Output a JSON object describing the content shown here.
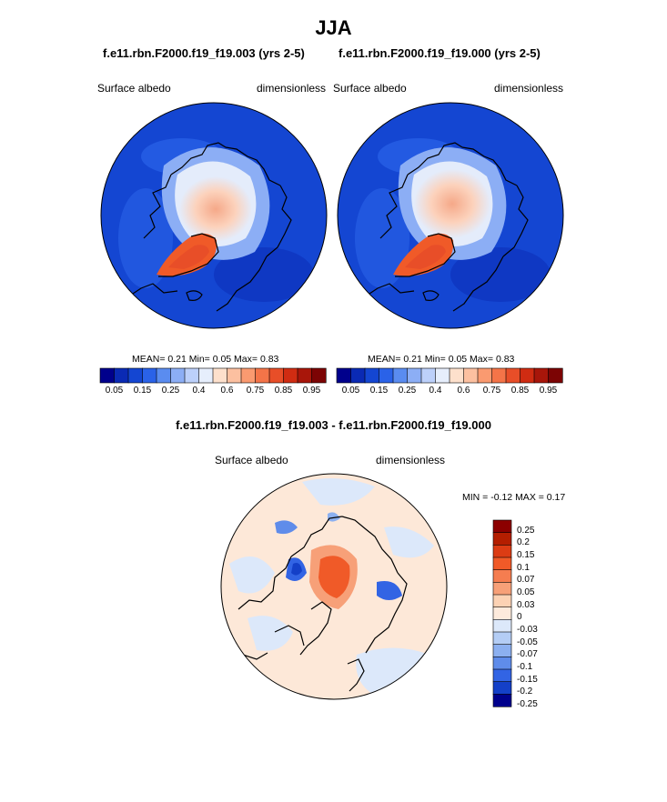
{
  "figure": {
    "title": "JJA",
    "left_panel": {
      "case_title": "f.e11.rbn.F2000.f19_f19.003 (yrs 2-5)",
      "variable": "Surface albedo",
      "units": "dimensionless",
      "stats": "MEAN=   0.21  Min=   0.05  Max=   0.83"
    },
    "right_panel": {
      "case_title": "f.e11.rbn.F2000.f19_f19.000 (yrs 2-5)",
      "variable": "Surface albedo",
      "units": "dimensionless",
      "stats": "MEAN=   0.21  Min=   0.05  Max=   0.83"
    },
    "diff_panel": {
      "title": "f.e11.rbn.F2000.f19_f19.003 - f.e11.rbn.F2000.f19_f19.000",
      "variable": "Surface albedo",
      "units": "dimensionless",
      "stats": "MIN =  -0.12 MAX =   0.17"
    }
  },
  "chart_data": [
    {
      "type": "heatmap",
      "title": "f.e11.rbn.F2000.f19_f19.003 (yrs 2-5)",
      "projection": "north polar stereographic",
      "variable": "Surface albedo",
      "units": "dimensionless",
      "mean": 0.21,
      "min": 0.05,
      "max": 0.83,
      "colorbar_levels": [
        0.05,
        0.1,
        0.15,
        0.2,
        0.25,
        0.3,
        0.4,
        0.5,
        0.6,
        0.7,
        0.75,
        0.8,
        0.85,
        0.9,
        0.95
      ],
      "colorbar_labels": [
        "0.05",
        "0.15",
        "0.25",
        "0.4",
        "0.6",
        "0.75",
        "0.85",
        "0.95"
      ]
    },
    {
      "type": "heatmap",
      "title": "f.e11.rbn.F2000.f19_f19.000 (yrs 2-5)",
      "projection": "north polar stereographic",
      "variable": "Surface albedo",
      "units": "dimensionless",
      "mean": 0.21,
      "min": 0.05,
      "max": 0.83,
      "colorbar_levels": [
        0.05,
        0.1,
        0.15,
        0.2,
        0.25,
        0.3,
        0.4,
        0.5,
        0.6,
        0.7,
        0.75,
        0.8,
        0.85,
        0.9,
        0.95
      ],
      "colorbar_labels": [
        "0.05",
        "0.15",
        "0.25",
        "0.4",
        "0.6",
        "0.75",
        "0.85",
        "0.95"
      ]
    },
    {
      "type": "heatmap",
      "title": "f.e11.rbn.F2000.f19_f19.003 - f.e11.rbn.F2000.f19_f19.000",
      "projection": "north polar stereographic",
      "variable": "Surface albedo",
      "units": "dimensionless",
      "min": -0.12,
      "max": 0.17,
      "colorbar_labels": [
        "0.25",
        "0.2",
        "0.15",
        "0.1",
        "0.07",
        "0.05",
        "0.03",
        "0",
        "-0.03",
        "-0.05",
        "-0.07",
        "-0.1",
        "-0.15",
        "-0.2",
        "-0.25"
      ]
    }
  ],
  "palettes": {
    "albedo": [
      "#00008c",
      "#0a2ab4",
      "#1446d2",
      "#2a62e8",
      "#5a8cf0",
      "#8caef5",
      "#bcd0fa",
      "#e6eefc",
      "#fde0cc",
      "#fcc0a0",
      "#fa9a70",
      "#f47448",
      "#e84e28",
      "#d02c12",
      "#a8160a",
      "#7c0404"
    ],
    "diff": [
      "#8c0000",
      "#b41e00",
      "#dc3c14",
      "#f05a28",
      "#f57d50",
      "#f7a078",
      "#fcd2b4",
      "#fdeadc",
      "#dce8fa",
      "#b4cdf5",
      "#8cb0f0",
      "#5f8cea",
      "#3264e4",
      "#1440c8",
      "#00008c"
    ]
  }
}
